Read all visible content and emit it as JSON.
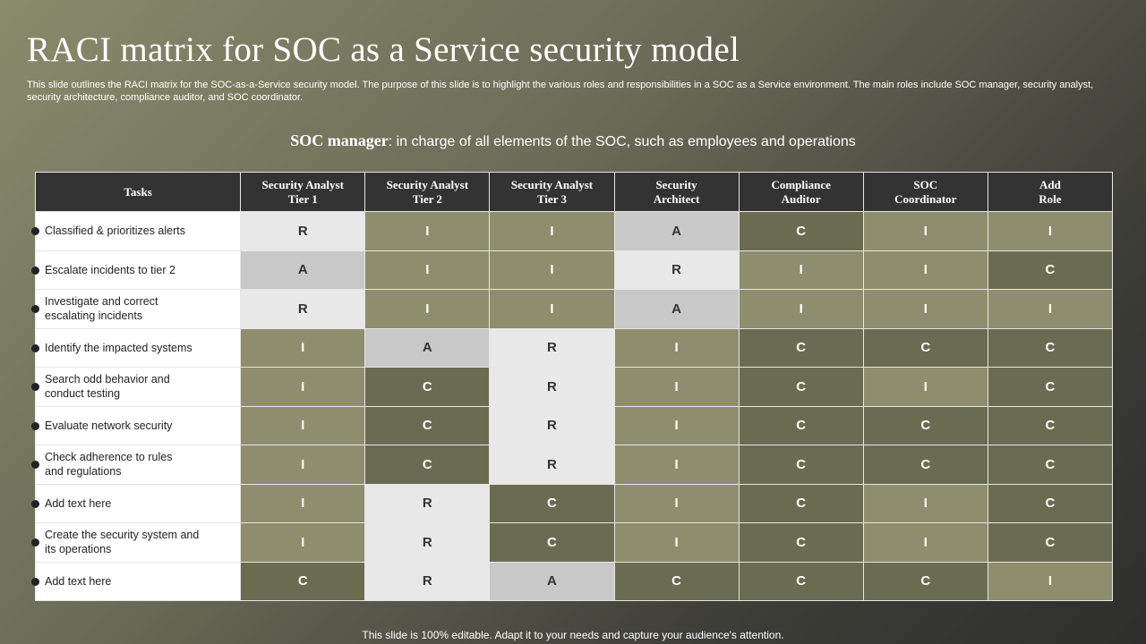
{
  "title": "RACI matrix for SOC as a Service security model",
  "description": "This slide outlines the RACI matrix for the SOC-as-a-Service security model. The purpose of this slide is to highlight the various roles and responsibilities in a SOC as a Service environment. The main roles include SOC manager, security analyst, security architecture, compliance auditor, and SOC coordinator.",
  "subhead": {
    "bold": "SOC manager",
    "rest": ": in charge of all elements of the SOC, such as employees and operations"
  },
  "table": {
    "headers": [
      [
        "Tasks"
      ],
      [
        "Security Analyst",
        "Tier 1"
      ],
      [
        "Security Analyst",
        "Tier 2"
      ],
      [
        "Security Analyst",
        "Tier 3"
      ],
      [
        "Security",
        "Architect"
      ],
      [
        "Compliance",
        "Auditor"
      ],
      [
        "SOC",
        "Coordinator"
      ],
      [
        "Add",
        "Role"
      ]
    ],
    "rows": [
      {
        "task": [
          "Classified & prioritizes alerts"
        ],
        "values": [
          "R",
          "I",
          "I",
          "A",
          "C",
          "I",
          "I"
        ],
        "tones": [
          "lt",
          "md",
          "md",
          "gr",
          "dk",
          "md",
          "md"
        ]
      },
      {
        "task": [
          "Escalate incidents to tier 2"
        ],
        "values": [
          "A",
          "I",
          "I",
          "R",
          "I",
          "I",
          "C"
        ],
        "tones": [
          "gr",
          "md",
          "md",
          "lt",
          "md",
          "md",
          "dk"
        ]
      },
      {
        "task": [
          "Investigate  and correct",
          "escalating incidents"
        ],
        "values": [
          "R",
          "I",
          "I",
          "A",
          "I",
          "I",
          "I"
        ],
        "tones": [
          "lt",
          "md",
          "md",
          "gr",
          "md",
          "md",
          "md"
        ]
      },
      {
        "task": [
          "Identify the impacted systems"
        ],
        "values": [
          "I",
          "A",
          "R",
          "I",
          "C",
          "C",
          "C"
        ],
        "tones": [
          "md",
          "gr",
          "lt",
          "md",
          "dk",
          "dk",
          "dk"
        ]
      },
      {
        "task": [
          "Search odd behavior  and",
          "conduct testing"
        ],
        "values": [
          "I",
          "C",
          "R",
          "I",
          "C",
          "I",
          "C"
        ],
        "tones": [
          "md",
          "dk",
          "lt",
          "md",
          "dk",
          "md",
          "dk"
        ]
      },
      {
        "task": [
          "Evaluate network security"
        ],
        "values": [
          "I",
          "C",
          "R",
          "I",
          "C",
          "C",
          "C"
        ],
        "tones": [
          "md",
          "dk",
          "lt",
          "md",
          "dk",
          "dk",
          "dk"
        ]
      },
      {
        "task": [
          "Check adherence to rules",
          "and regulations"
        ],
        "values": [
          "I",
          "C",
          "R",
          "I",
          "C",
          "C",
          "C"
        ],
        "tones": [
          "md",
          "dk",
          "lt",
          "md",
          "dk",
          "dk",
          "dk"
        ]
      },
      {
        "task": [
          "Add text here"
        ],
        "values": [
          "I",
          "R",
          "C",
          "I",
          "C",
          "I",
          "C"
        ],
        "tones": [
          "md",
          "lt",
          "dk",
          "md",
          "dk",
          "md",
          "dk"
        ]
      },
      {
        "task": [
          "Create the security system and",
          "its operations"
        ],
        "values": [
          "I",
          "R",
          "C",
          "I",
          "C",
          "I",
          "C"
        ],
        "tones": [
          "md",
          "lt",
          "dk",
          "md",
          "dk",
          "md",
          "dk"
        ]
      },
      {
        "task": [
          "Add text here"
        ],
        "values": [
          "C",
          "R",
          "A",
          "C",
          "C",
          "C",
          "I"
        ],
        "tones": [
          "dk",
          "lt",
          "gr",
          "dk",
          "dk",
          "dk",
          "md"
        ]
      }
    ]
  },
  "colors": {
    "light": "#e8e8e8",
    "gray": "#c8c8c8",
    "olive": "#8e8e6e",
    "dark_olive": "#6b6b52",
    "header": "#333333"
  },
  "footer": "This slide is 100% editable. Adapt it to your needs and capture your audience's attention."
}
